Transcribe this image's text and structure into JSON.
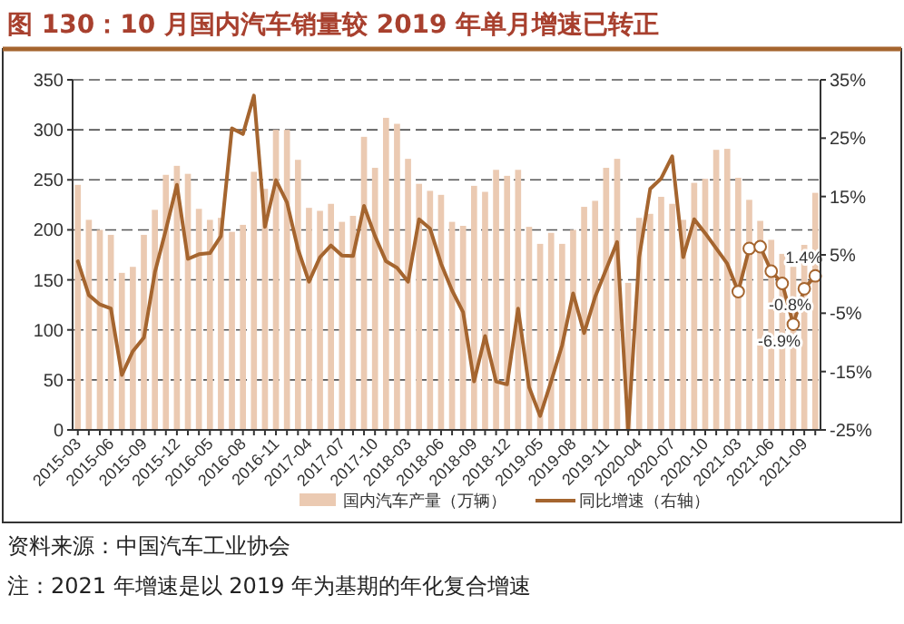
{
  "chart_data": {
    "type": "bar",
    "title": "图 130：10 月国内汽车销量较 2019 年单月增速已转正",
    "categories": [
      "2015-03",
      null,
      null,
      "2015-06",
      null,
      null,
      "2015-09",
      null,
      null,
      "2015-12",
      null,
      null,
      "2016-05",
      null,
      null,
      "2016-08",
      null,
      null,
      "2016-11",
      null,
      null,
      "2017-04",
      null,
      null,
      "2017-07",
      null,
      null,
      "2017-10",
      null,
      null,
      "2018-03",
      null,
      null,
      "2018-06",
      null,
      null,
      "2018-09",
      null,
      null,
      "2018-12",
      null,
      null,
      "2019-05",
      null,
      null,
      "2019-08",
      null,
      null,
      "2019-11",
      null,
      null,
      "2020-04",
      null,
      null,
      "2020-07",
      null,
      null,
      "2020-10",
      null,
      null,
      "2021-03",
      null,
      null,
      "2021-06",
      null,
      null,
      "2021-09",
      null
    ],
    "series": [
      {
        "name": "国内汽车产量（万辆）",
        "color": "#ebcab2",
        "values": [
          245,
          210,
          200,
          195,
          157,
          163,
          195,
          220,
          255,
          264,
          256,
          221,
          210,
          212,
          198,
          205,
          258,
          241,
          300,
          300,
          270,
          222,
          219,
          226,
          208,
          214,
          293,
          262,
          312,
          306,
          271,
          246,
          239,
          235,
          208,
          204,
          244,
          238,
          260,
          254,
          260,
          203,
          186,
          197,
          186,
          200,
          223,
          229,
          262,
          271,
          147,
          212,
          216,
          233,
          226,
          210,
          247,
          251,
          280,
          281,
          252,
          230,
          209,
          190,
          176,
          163,
          185,
          237
        ]
      },
      {
        "name": "同比增速（右轴）",
        "type": "line",
        "axis": "y2",
        "color": "#a5652f",
        "marker": "none",
        "values": [
          3.9,
          -1.9,
          -3.5,
          -4.2,
          -15.6,
          -11.5,
          -9.2,
          2.0,
          9.3,
          17,
          4.3,
          5.1,
          5.3,
          8.2,
          26.7,
          25.7,
          32.3,
          9.8,
          17.8,
          14,
          6,
          0.4,
          4.6,
          6.6,
          4.9,
          4.8,
          13.4,
          8.2,
          3.9,
          2.8,
          0.4,
          11.1,
          9.5,
          3.5,
          -1.1,
          -4.8,
          -16.7,
          -8.9,
          -16.7,
          -17.2,
          -4.2,
          -17.7,
          -22.6,
          -16.7,
          -10.5,
          -1.6,
          -8.4,
          -2.2,
          2.5,
          7.2,
          -25,
          4.6,
          16.3,
          18.1,
          21.9,
          4.6,
          11.1,
          8.7,
          6.1,
          3.5,
          -1.3,
          6.1,
          6.4,
          2.2,
          0.1,
          -6.9,
          -0.8,
          1.4
        ]
      },
      {
        "type": "scatter",
        "axis": "y2",
        "color": "#ffffff",
        "marker": "circle",
        "values": [
          null,
          null,
          null,
          null,
          null,
          null,
          null,
          null,
          null,
          null,
          null,
          null,
          null,
          null,
          null,
          null,
          null,
          null,
          null,
          null,
          null,
          null,
          null,
          null,
          null,
          null,
          null,
          null,
          null,
          null,
          null,
          null,
          null,
          null,
          null,
          null,
          null,
          null,
          null,
          null,
          null,
          null,
          null,
          null,
          null,
          null,
          null,
          null,
          null,
          null,
          null,
          null,
          null,
          null,
          null,
          null,
          null,
          null,
          null,
          null,
          -1.3,
          6.1,
          6.4,
          2.2,
          0.1,
          -6.9,
          -0.8,
          1.4
        ],
        "value_labels": [
          null,
          null,
          null,
          null,
          null,
          null,
          null,
          null,
          null,
          null,
          null,
          null,
          null,
          null,
          null,
          null,
          null,
          null,
          null,
          null,
          null,
          null,
          null,
          null,
          null,
          null,
          null,
          null,
          null,
          null,
          null,
          null,
          null,
          null,
          null,
          null,
          null,
          null,
          null,
          null,
          null,
          null,
          null,
          null,
          null,
          null,
          null,
          null,
          null,
          null,
          null,
          null,
          null,
          null,
          null,
          null,
          null,
          null,
          null,
          null,
          null,
          null,
          null,
          null,
          null,
          "-6.9%",
          "-0.8%",
          "1.4%"
        ]
      }
    ],
    "ylim": [
      0,
      350
    ],
    "yticks": [
      0,
      50,
      100,
      150,
      200,
      250,
      300,
      350
    ],
    "y2lim": [
      -25,
      35
    ],
    "y2ticks": [
      {
        "value": -25,
        "label": "-25%"
      },
      {
        "value": -15,
        "label": "-15%"
      },
      {
        "value": -5,
        "label": "-5%"
      },
      {
        "value": 5,
        "label": "5%"
      },
      {
        "value": 15,
        "label": "15%"
      },
      {
        "value": 25,
        "label": "25%"
      },
      {
        "value": 35,
        "label": "35%"
      }
    ],
    "grid": "y",
    "legend": "bottom",
    "annotations": [
      "资料来源：中国汽车工业协会",
      "注：2021 年增速是以 2019 年为基期的年化复合增速"
    ]
  }
}
